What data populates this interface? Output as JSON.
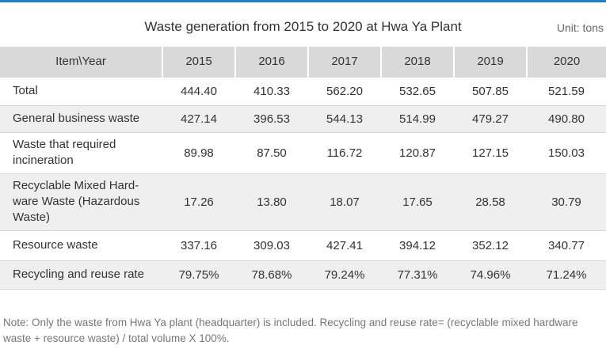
{
  "title": "Waste generation from 2015 to 2020 at Hwa Ya Plant",
  "unit": "Unit: tons",
  "columns": [
    "Item\\Year",
    "2015",
    "2016",
    "2017",
    "2018",
    "2019",
    "2020"
  ],
  "rows": [
    {
      "label": "Total",
      "values": [
        "444.40",
        "410.33",
        "562.20",
        "532.65",
        "507.85",
        "521.59"
      ]
    },
    {
      "label": "General business waste",
      "values": [
        "427.14",
        "396.53",
        "544.13",
        "514.99",
        "479.27",
        "490.80"
      ]
    },
    {
      "label": "Waste that required incineration",
      "values": [
        "89.98",
        "87.50",
        "116.72",
        "120.87",
        "127.15",
        "150.03"
      ]
    },
    {
      "label": "Recyclable Mixed Hard-ware Waste (Hazardous Waste)",
      "values": [
        "17.26",
        "13.80",
        "18.07",
        "17.65",
        "28.58",
        "30.79"
      ]
    },
    {
      "label": "Resource waste",
      "values": [
        "337.16",
        "309.03",
        "427.41",
        "394.12",
        "352.12",
        "340.77"
      ]
    },
    {
      "label": "Recycling and reuse rate",
      "values": [
        "79.75%",
        "78.68%",
        "79.24%",
        "77.31%",
        "74.96%",
        "71.24%"
      ]
    }
  ],
  "note": "Note: Only the waste from Hwa Ya plant (headquarter) is included. Recycling and reuse rate= (recyclable mixed hardware waste + resource waste) / total volume X 100%.",
  "colors": {
    "accent": "#1e7fc4",
    "header_bg": "#d9d9d9",
    "stripe_bg": "#efefef"
  }
}
